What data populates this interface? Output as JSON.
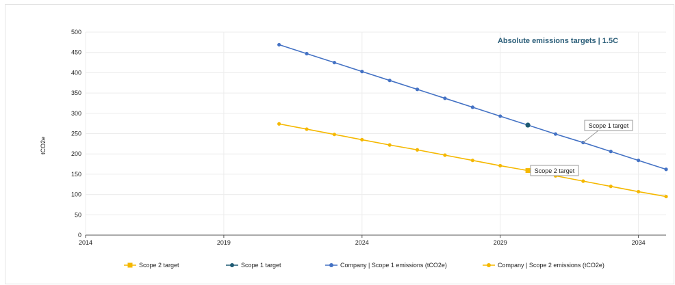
{
  "chart_data": {
    "type": "line",
    "title": "Absolute emissions targets | 1.5C",
    "ylabel": "tCO2e",
    "xlabel": "",
    "xlim": [
      2014,
      2035
    ],
    "ylim": [
      0,
      500
    ],
    "x_ticks": [
      "2014",
      "2019",
      "2024",
      "2029",
      "2034"
    ],
    "y_ticks": [
      "0",
      "50",
      "100",
      "150",
      "200",
      "250",
      "300",
      "350",
      "400",
      "450",
      "500"
    ],
    "grid": true,
    "legend_position": "bottom",
    "series": [
      {
        "name": "Company | Scope 1 emissions (tCO2e)",
        "color": "#4472c4",
        "x": [
          2021,
          2022,
          2023,
          2024,
          2025,
          2026,
          2027,
          2028,
          2029,
          2030,
          2031,
          2032,
          2033,
          2034,
          2035
        ],
        "y": [
          469,
          447,
          425,
          403,
          381,
          359,
          337,
          315,
          293,
          271,
          249,
          228,
          206,
          184,
          162
        ]
      },
      {
        "name": "Company | Scope 2 emissions (tCO2e)",
        "color": "#f5b800",
        "x": [
          2021,
          2022,
          2023,
          2024,
          2025,
          2026,
          2027,
          2028,
          2029,
          2030,
          2031,
          2032,
          2033,
          2034,
          2035
        ],
        "y": [
          274,
          261,
          248,
          235,
          222,
          210,
          197,
          184,
          171,
          159,
          146,
          133,
          120,
          107,
          95
        ]
      }
    ],
    "targets": [
      {
        "name": "Scope 1 target",
        "color": "#1e5a73",
        "x": 2030,
        "y": 271
      },
      {
        "name": "Scope 2 target",
        "color": "#f5b800",
        "x": 2030,
        "y": 159
      }
    ],
    "annotations": [
      {
        "text": "Scope 1 target",
        "x": 2032,
        "y": 228
      },
      {
        "text": "Scope 2 target",
        "x": 2030,
        "y": 159
      }
    ],
    "legend": [
      {
        "label": "Scope 2 target",
        "color": "#f5b800",
        "marker": "square"
      },
      {
        "label": "Scope 1 target",
        "color": "#1e5a73",
        "marker": "circle"
      },
      {
        "label": "Company | Scope 1 emissions (tCO2e)",
        "color": "#4472c4",
        "marker": "circle"
      },
      {
        "label": "Company | Scope 2 emissions (tCO2e)",
        "color": "#f5b800",
        "marker": "circle"
      }
    ]
  }
}
